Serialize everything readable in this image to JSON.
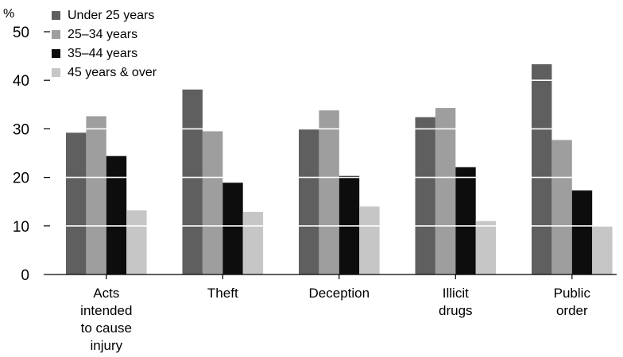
{
  "chart_data": {
    "type": "bar",
    "ylabel": "%",
    "ylim": [
      0,
      50
    ],
    "yticks": [
      "0",
      "10",
      "20",
      "30",
      "40",
      "50"
    ],
    "categories": [
      [
        "Acts",
        "intended",
        "to cause",
        "injury"
      ],
      [
        "Theft"
      ],
      [
        "Deception"
      ],
      [
        "Illicit",
        "drugs"
      ],
      [
        "Public",
        "order"
      ]
    ],
    "series": [
      {
        "name": "Under 25 years",
        "color": "#5f5f5f",
        "values": [
          29.2,
          38.1,
          29.9,
          32.4,
          43.3
        ]
      },
      {
        "name": "25–34 years",
        "color": "#9e9e9e",
        "values": [
          32.6,
          29.5,
          33.8,
          34.3,
          27.7
        ]
      },
      {
        "name": "35–44 years",
        "color": "#0d0d0d",
        "values": [
          24.4,
          18.9,
          20.3,
          22.1,
          17.3
        ]
      },
      {
        "name": "45 years & over",
        "color": "#c6c6c6",
        "values": [
          13.2,
          12.9,
          14.0,
          11.0,
          9.9
        ]
      }
    ],
    "gridlines": "white lines drawn over bars",
    "legend": "top-left"
  }
}
